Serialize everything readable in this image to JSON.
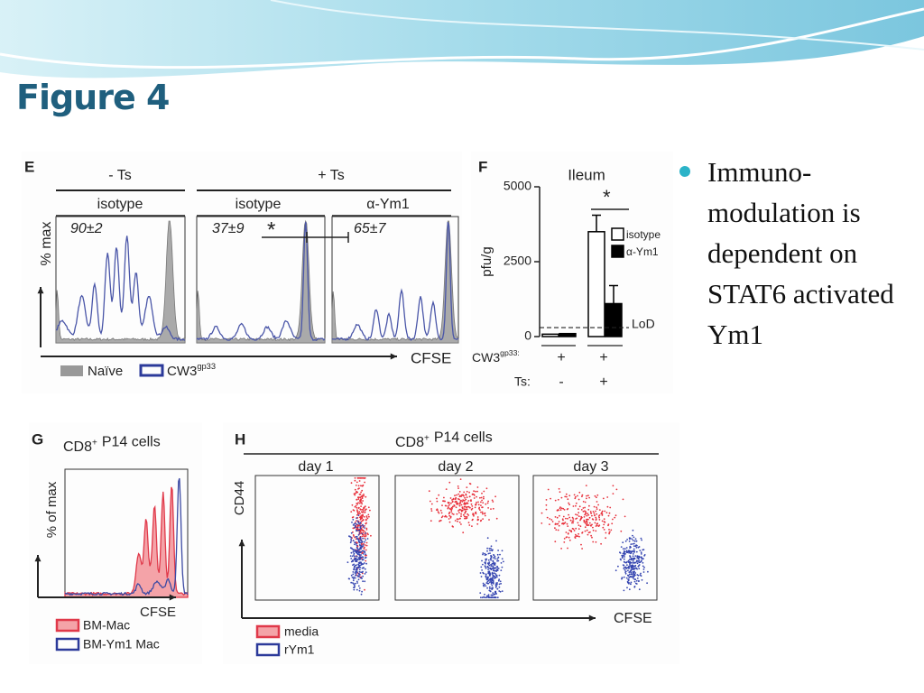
{
  "header": {
    "title": "Figure 4"
  },
  "bullets": [
    "Immuno-modulation is dependent on STAT6 activated Ym1"
  ],
  "panel_e": {
    "letter": "E",
    "groups": [
      "- Ts",
      "+ Ts"
    ],
    "conditions": [
      "isotype",
      "isotype",
      "α-Ym1"
    ],
    "values": [
      "90±2",
      "37±9",
      "65±7"
    ],
    "significance": "*",
    "y_label": "% max",
    "x_label": "CFSE",
    "legend": [
      "Naïve",
      "CW3"
    ],
    "legend_sup": "gp33"
  },
  "panel_f": {
    "letter": "F",
    "title": "Ileum",
    "y_label": "pfu/g",
    "ylim": [
      0,
      5000
    ],
    "yticks": [
      0,
      2500,
      5000
    ],
    "series": [
      {
        "name": "isotype",
        "color": "#ffffff",
        "values": [
          80,
          3500
        ],
        "errors": [
          null,
          550
        ]
      },
      {
        "name": "α-Ym1",
        "color": "#000000",
        "values": [
          100,
          1100
        ],
        "errors": [
          null,
          600
        ]
      }
    ],
    "lod": {
      "label": "LoD",
      "value": 300
    },
    "significance": "*",
    "row_labels": [
      "CW3",
      "Ts:"
    ],
    "row_sup": "gp33:",
    "rows": [
      [
        "+",
        "+"
      ],
      [
        "-",
        "+"
      ]
    ]
  },
  "panel_g": {
    "letter": "G",
    "title": "CD8",
    "title_sup": "+",
    "title_rest": "P14 cells",
    "y_label": "% of max",
    "x_label": "CFSE",
    "legend": [
      "BM-Mac",
      "BM-Ym1 Mac"
    ]
  },
  "panel_h": {
    "letter": "H",
    "title": "CD8",
    "title_sup": "+",
    "title_rest": "P14 cells",
    "days": [
      "day 1",
      "day 2",
      "day 3"
    ],
    "y_label": "CD44",
    "x_label": "CFSE",
    "legend": [
      "media",
      "rYm1"
    ]
  }
}
